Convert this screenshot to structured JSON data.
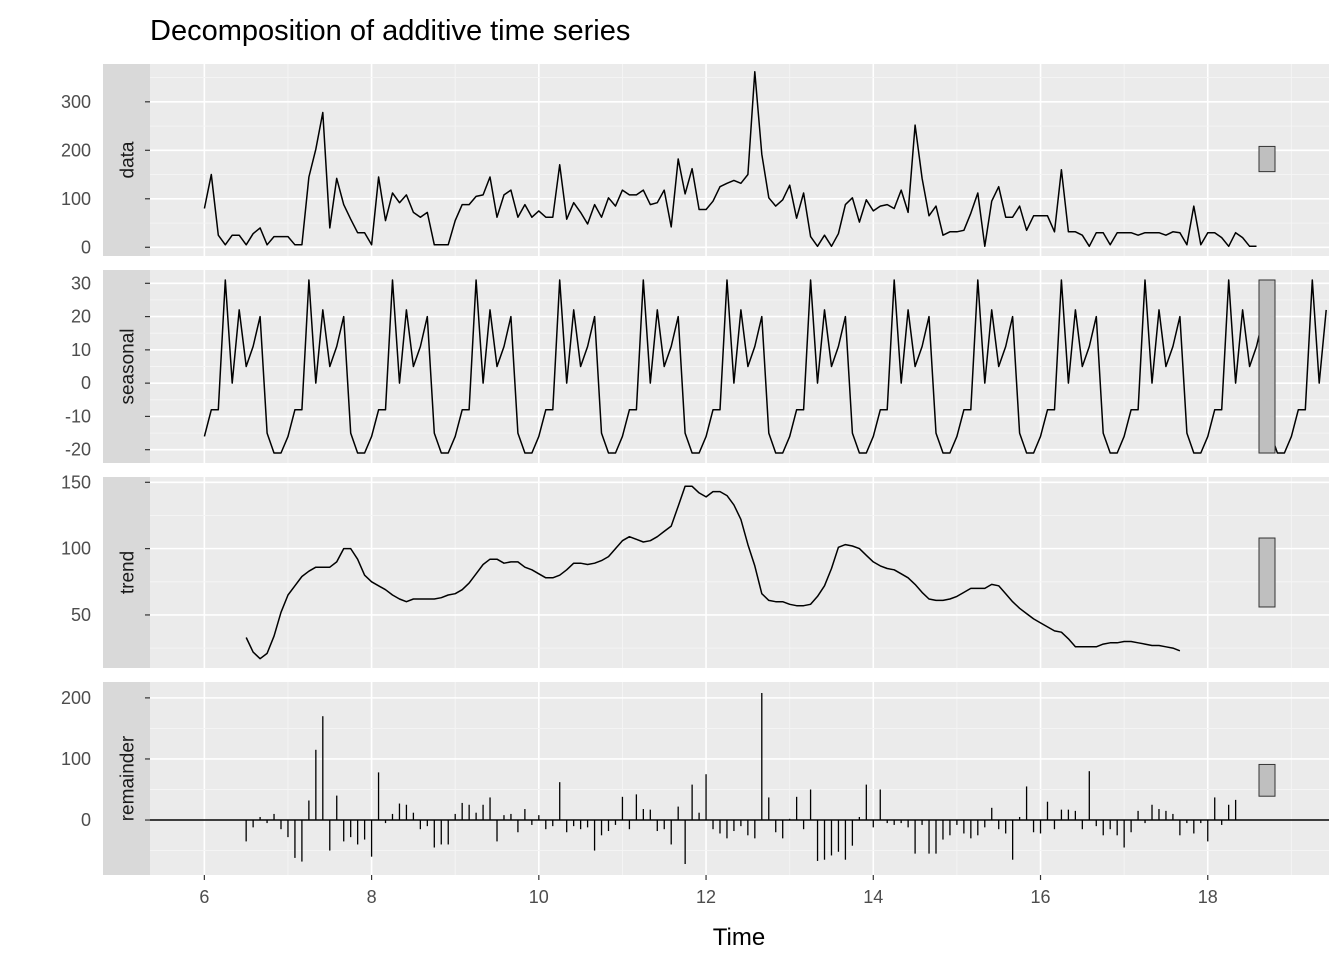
{
  "chart_data": {
    "type": "line",
    "title": "Decomposition of additive time series",
    "xlabel": "Time",
    "xlim": [
      5.35,
      19.45
    ],
    "x_ticks": [
      6,
      8,
      10,
      12,
      14,
      16,
      18
    ],
    "x_tick_labels": [
      "6",
      "8",
      "10",
      "12",
      "14",
      "16",
      "18"
    ],
    "frequency": 12,
    "start": 6,
    "panels": [
      {
        "name": "data",
        "label": "data",
        "ylim": [
          -18,
          378
        ],
        "y_ticks": [
          0,
          100,
          200,
          300
        ],
        "y_tick_labels": [
          "0",
          "100",
          "200",
          "300"
        ],
        "scale_bar_range": [
          156,
          208
        ],
        "values": [
          80,
          150,
          25,
          5,
          25,
          25,
          5,
          28,
          40,
          5,
          22,
          22,
          22,
          5,
          5,
          145,
          202,
          278,
          40,
          142,
          88,
          58,
          30,
          30,
          5,
          145,
          55,
          112,
          92,
          108,
          72,
          62,
          72,
          5,
          5,
          5,
          55,
          88,
          88,
          105,
          108,
          145,
          62,
          108,
          118,
          62,
          88,
          62,
          75,
          62,
          62,
          170,
          58,
          92,
          72,
          48,
          88,
          62,
          102,
          85,
          118,
          108,
          108,
          118,
          88,
          92,
          118,
          42,
          182,
          110,
          162,
          78,
          78,
          95,
          125,
          132,
          138,
          132,
          150,
          362,
          192,
          102,
          85,
          98,
          128,
          60,
          112,
          22,
          2,
          25,
          2,
          28,
          88,
          102,
          52,
          98,
          75,
          85,
          88,
          80,
          118,
          72,
          252,
          142,
          65,
          85,
          25,
          32,
          32,
          35,
          70,
          112,
          2,
          95,
          125,
          62,
          62,
          85,
          35,
          65,
          65,
          65,
          32,
          160,
          32,
          32,
          25,
          2,
          30,
          30,
          5,
          30,
          30,
          30,
          25,
          30,
          30,
          30,
          25,
          32,
          30,
          5,
          85,
          5,
          30,
          30,
          20,
          2,
          30,
          20,
          2,
          2
        ],
        "x_start": 6
      },
      {
        "name": "seasonal",
        "label": "seasonal",
        "ylim": [
          -24,
          34
        ],
        "y_ticks": [
          -20,
          -10,
          0,
          10,
          20,
          30
        ],
        "y_tick_labels": [
          "-20",
          "-10",
          "0",
          "10",
          "20",
          "30"
        ],
        "scale_bar_range": [
          -21,
          31
        ],
        "values": [
          -16,
          -8,
          -8,
          31,
          0,
          22,
          5,
          11,
          20,
          -15,
          -21,
          -21
        ],
        "repeat_cycles": 13,
        "x_start": 6
      },
      {
        "name": "trend",
        "label": "trend",
        "ylim": [
          10,
          154
        ],
        "y_ticks": [
          50,
          100,
          150
        ],
        "y_tick_labels": [
          "50",
          "100",
          "150"
        ],
        "scale_bar_range": [
          56,
          108
        ],
        "values": [
          33,
          22,
          17,
          21,
          34,
          52,
          65,
          72,
          79,
          83,
          86,
          86,
          86,
          90,
          100,
          100,
          92,
          80,
          75,
          72,
          69,
          65,
          62,
          60,
          62,
          62,
          62,
          62,
          63,
          65,
          66,
          69,
          74,
          81,
          88,
          92,
          92,
          89,
          90,
          90,
          86,
          84,
          81,
          78,
          78,
          80,
          84,
          89,
          89,
          88,
          89,
          91,
          94,
          100,
          106,
          109,
          107,
          105,
          106,
          109,
          113,
          117,
          132,
          147,
          147,
          142,
          139,
          143,
          143,
          140,
          133,
          122,
          103,
          87,
          66,
          61,
          60,
          60,
          58,
          57,
          57,
          58,
          64,
          72,
          85,
          101,
          103,
          102,
          100,
          95,
          90,
          87,
          85,
          84,
          81,
          78,
          73,
          67,
          62,
          61,
          61,
          62,
          64,
          67,
          70,
          70,
          70,
          73,
          72,
          66,
          60,
          55,
          51,
          47,
          44,
          41,
          38,
          37,
          32,
          26,
          26,
          26,
          26,
          28,
          29,
          29,
          30,
          30,
          29,
          28,
          27,
          27,
          26,
          25,
          23
        ],
        "x_start": 6.5
      },
      {
        "name": "remainder",
        "label": "remainder",
        "ylim": [
          -90,
          226
        ],
        "y_ticks": [
          0,
          100,
          200
        ],
        "y_tick_labels": [
          "0",
          "100",
          "200"
        ],
        "scale_bar_range": [
          39,
          91
        ],
        "values": [
          -35,
          -12,
          5,
          -5,
          10,
          -15,
          -28,
          -62,
          -68,
          32,
          115,
          170,
          -50,
          40,
          -35,
          -28,
          -40,
          -32,
          -60,
          78,
          -5,
          10,
          27,
          25,
          12,
          -15,
          -10,
          -45,
          -40,
          -40,
          10,
          28,
          25,
          12,
          25,
          37,
          -35,
          8,
          10,
          -20,
          18,
          -8,
          8,
          -15,
          -10,
          62,
          -20,
          -10,
          -15,
          -12,
          -50,
          -25,
          -18,
          -8,
          38,
          -15,
          42,
          18,
          17,
          -18,
          -15,
          -40,
          22,
          -72,
          58,
          12,
          75,
          -15,
          -22,
          -30,
          -18,
          -10,
          -25,
          -30,
          208,
          37,
          -20,
          -30,
          2,
          38,
          -15,
          50,
          -67,
          -65,
          -58,
          -52,
          -65,
          -42,
          5,
          58,
          -12,
          50,
          -5,
          -8,
          -5,
          -12,
          -55,
          -8,
          -55,
          -55,
          -32,
          -25,
          -8,
          -22,
          -30,
          -25,
          -12,
          20,
          -15,
          -22,
          -65,
          5,
          55,
          -20,
          -22,
          30,
          -15,
          17,
          17,
          15,
          -15,
          80,
          -10,
          -25,
          -15,
          -25,
          -45,
          -20,
          15,
          -5,
          25,
          18,
          15,
          10,
          -25,
          -5,
          -22,
          -5,
          -35,
          37,
          -8,
          25,
          33
        ],
        "x_start": 6.5
      }
    ]
  }
}
